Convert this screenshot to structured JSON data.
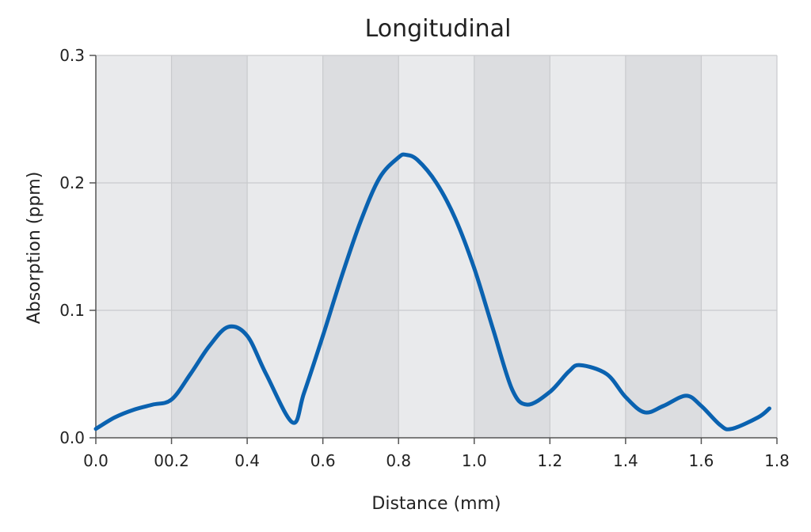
{
  "chart_data": {
    "type": "line",
    "title": "Longitudinal",
    "xlabel": "Distance (mm)",
    "ylabel": "Absorption (ppm)",
    "xlim": [
      0.0,
      1.8
    ],
    "ylim": [
      0.0,
      0.3
    ],
    "x_ticks": [
      0.0,
      0.2,
      0.4,
      0.6,
      0.8,
      1.0,
      1.2,
      1.4,
      1.6,
      1.8
    ],
    "x_tick_labels": [
      "0.0",
      "00.2",
      "0.4",
      "0.6",
      "0.8",
      "1.0",
      "1.2",
      "1.4",
      "1.6",
      "1.8"
    ],
    "y_ticks": [
      0.0,
      0.1,
      0.2,
      0.3
    ],
    "y_tick_labels": [
      "0.0",
      "0.1",
      "0.2",
      "0.3"
    ],
    "grid": true,
    "shaded_bands": [
      [
        0.2,
        0.4
      ],
      [
        0.6,
        0.8
      ],
      [
        1.0,
        1.2
      ],
      [
        1.4,
        1.6
      ]
    ],
    "colors": {
      "line": "#0a62b0",
      "plot_background": "#e9eaec",
      "band": "#dcdde0",
      "grid": "#c9cacd",
      "axis": "#555555"
    },
    "series": [
      {
        "x": [
          0.0,
          0.05,
          0.1,
          0.15,
          0.2,
          0.25,
          0.3,
          0.35,
          0.4,
          0.45,
          0.52,
          0.55,
          0.6,
          0.65,
          0.7,
          0.75,
          0.8,
          0.82,
          0.85,
          0.9,
          0.95,
          1.0,
          1.05,
          1.1,
          1.14,
          1.2,
          1.25,
          1.28,
          1.35,
          1.4,
          1.45,
          1.5,
          1.56,
          1.6,
          1.65,
          1.68,
          1.75,
          1.78
        ],
        "y": [
          0.007,
          0.016,
          0.022,
          0.026,
          0.03,
          0.05,
          0.072,
          0.087,
          0.08,
          0.05,
          0.012,
          0.035,
          0.08,
          0.127,
          0.17,
          0.204,
          0.22,
          0.222,
          0.218,
          0.2,
          0.172,
          0.133,
          0.085,
          0.038,
          0.026,
          0.036,
          0.052,
          0.057,
          0.05,
          0.032,
          0.02,
          0.025,
          0.033,
          0.025,
          0.01,
          0.007,
          0.016,
          0.023
        ]
      }
    ]
  }
}
